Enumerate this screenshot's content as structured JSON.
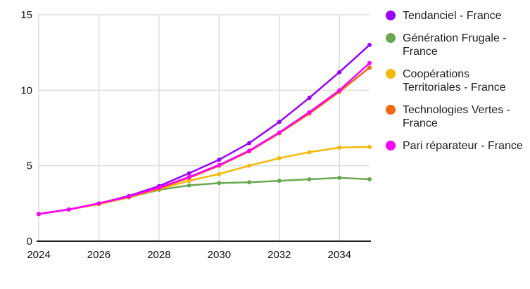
{
  "chart_data": {
    "type": "line",
    "title": "",
    "xlabel": "",
    "ylabel": "",
    "x": [
      2024,
      2025,
      2026,
      2027,
      2028,
      2029,
      2030,
      2031,
      2032,
      2033,
      2034,
      2035
    ],
    "series": [
      {
        "name": "Tendanciel - France",
        "color": "#9900FF",
        "values": [
          1.8,
          2.1,
          2.5,
          3.0,
          3.65,
          4.5,
          5.4,
          6.5,
          7.9,
          9.5,
          11.2,
          13.0
        ]
      },
      {
        "name": "Génération Frugale - France",
        "color": "#6AA84F",
        "values": [
          1.8,
          2.1,
          2.45,
          2.9,
          3.4,
          3.7,
          3.85,
          3.9,
          4.0,
          4.1,
          4.2,
          4.1
        ]
      },
      {
        "name": "Coopérations Territoriales - France",
        "color": "#F6B908",
        "values": [
          1.8,
          2.1,
          2.45,
          2.9,
          3.45,
          4.0,
          4.45,
          5.0,
          5.5,
          5.9,
          6.2,
          6.25
        ]
      },
      {
        "name": "Technologies Vertes - France",
        "color": "#F2670C",
        "values": [
          1.8,
          2.1,
          2.5,
          2.95,
          3.5,
          4.2,
          5.0,
          5.95,
          7.15,
          8.45,
          9.9,
          11.5
        ]
      },
      {
        "name": "Pari réparateur - France",
        "color": "#FF00FF",
        "values": [
          1.8,
          2.1,
          2.5,
          2.95,
          3.55,
          4.25,
          5.05,
          6.0,
          7.2,
          8.55,
          10.0,
          11.8
        ]
      }
    ],
    "ylim": [
      0,
      15
    ],
    "y_ticks": [
      0,
      5,
      10,
      15
    ],
    "y_tick_labels": [
      "0",
      "5",
      "10",
      "15"
    ],
    "x_tick_years": [
      2024,
      2026,
      2028,
      2030,
      2032,
      2034
    ],
    "x_tick_labels": [
      "2024",
      "2026",
      "2028",
      "2030",
      "2032",
      "2034"
    ],
    "grid": true,
    "legend_position": "right",
    "marker": "circle"
  },
  "style": {
    "background": "#FFFFFF",
    "gridline_color": "#DEDEDE",
    "baseline_color": "#212121",
    "tick_text_color": "#111111",
    "legend_text_color": "#212121",
    "line_width": 2.5,
    "marker_radius": 3
  }
}
